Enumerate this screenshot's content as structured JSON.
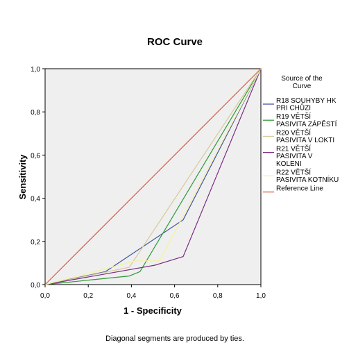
{
  "chart_data": {
    "type": "line",
    "title": "ROC Curve",
    "xlabel": "1 - Specificity",
    "ylabel": "Sensitivity",
    "xlim": [
      0,
      1
    ],
    "ylim": [
      0,
      1
    ],
    "xticks": [
      "0,0",
      "0,2",
      "0,4",
      "0,6",
      "0,8",
      "1,0"
    ],
    "yticks": [
      "0,0",
      "0,2",
      "0,4",
      "0,6",
      "0,8",
      "1,0"
    ],
    "grid": false,
    "background": "#efefef",
    "legend": {
      "title": "Source of the Curve",
      "placement": "right",
      "entries": [
        {
          "lines": [
            "R18 SOUHYBY HK",
            "PRI CHŮZI"
          ],
          "series": 0
        },
        {
          "lines": [
            "R19 VĚTŠÍ",
            "PASIVITA ZÁPĚSTÍ"
          ],
          "series": 1
        },
        {
          "lines": [
            "R20 VĚTŠÍ",
            "PASIVITA V LOKTI"
          ],
          "series": 2
        },
        {
          "lines": [
            "R21 VĚTŠÍ",
            "PASIVITA V",
            "KOLENI"
          ],
          "series": 3
        },
        {
          "lines": [
            "R22 VĚTŠÍ",
            "PASIVITA KOTNÍKU"
          ],
          "series": 4
        },
        {
          "lines": [
            "Reference Line"
          ],
          "series": 5
        }
      ]
    },
    "series": [
      {
        "name": "R18 SOUHYBY HK PRI CHŮZI",
        "color": "#3e54a3",
        "x": [
          0,
          0.28,
          0.64,
          1
        ],
        "y": [
          0,
          0.06,
          0.3,
          1
        ]
      },
      {
        "name": "R19 VĚTŠÍ PASIVITA ZÁPĚSTÍ",
        "color": "#2e9a39",
        "x": [
          0,
          0.39,
          0.44,
          1
        ],
        "y": [
          0,
          0.04,
          0.06,
          1
        ]
      },
      {
        "name": "R20 VĚTŠÍ PASIVITA V LOKTI",
        "color": "#d8ca9a",
        "x": [
          0,
          0.39,
          1
        ],
        "y": [
          0,
          0.08,
          1
        ]
      },
      {
        "name": "R21 VĚTŠÍ PASIVITA V KOLENI",
        "color": "#7b2d83",
        "x": [
          0,
          0.51,
          0.64,
          1
        ],
        "y": [
          0,
          0.09,
          0.13,
          1
        ]
      },
      {
        "name": "R22 VĚTŠÍ PASIVITA KOTNÍKU",
        "color": "#f5f29e",
        "x": [
          0,
          0.42,
          0.53,
          1
        ],
        "y": [
          0,
          0.11,
          0.11,
          1
        ]
      },
      {
        "name": "Reference Line",
        "color": "#e0573b",
        "x": [
          0,
          1
        ],
        "y": [
          0,
          1
        ]
      }
    ],
    "footnote": "Diagonal segments are produced by ties."
  }
}
